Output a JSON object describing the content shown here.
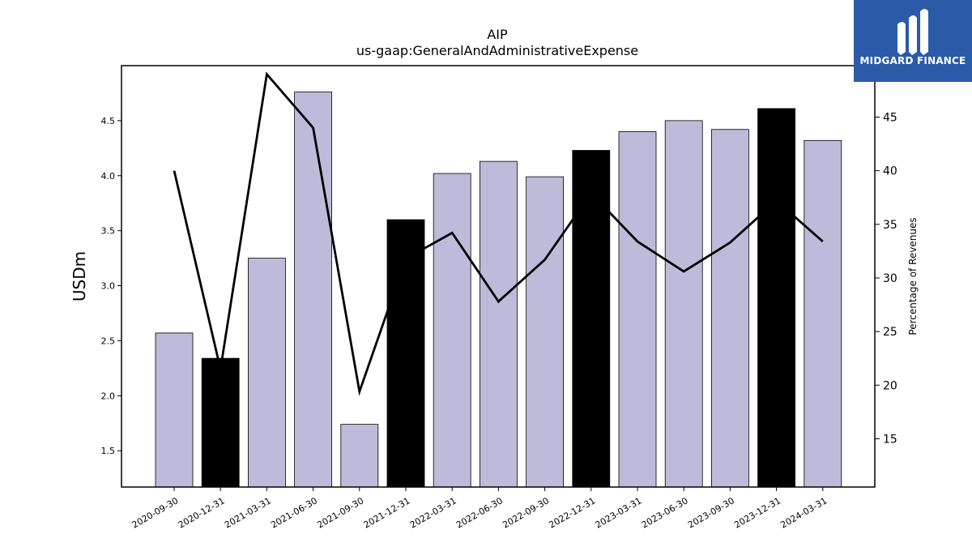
{
  "chart_data": {
    "type": "bar+line",
    "title": "AIP",
    "subtitle": "us-gaap:GeneralAndAdministrativeExpense",
    "ylabel": "USDm",
    "y2label": "Percentage of Revenues",
    "categories": [
      "2020-09-30",
      "2020-12-31",
      "2021-03-31",
      "2021-06-30",
      "2021-09-30",
      "2021-12-31",
      "2022-03-31",
      "2022-06-30",
      "2022-09-30",
      "2022-12-31",
      "2023-03-31",
      "2023-06-30",
      "2023-09-30",
      "2023-12-31",
      "2024-03-31"
    ],
    "bar_values": [
      2.57,
      2.34,
      3.25,
      4.76,
      1.74,
      3.6,
      4.02,
      4.13,
      3.99,
      4.23,
      4.4,
      4.5,
      4.42,
      4.61,
      4.32
    ],
    "bar_highlight": [
      false,
      true,
      false,
      false,
      false,
      true,
      false,
      false,
      false,
      true,
      false,
      false,
      false,
      true,
      false
    ],
    "line_values": [
      40.0,
      21.5,
      49.0,
      44.0,
      19.4,
      31.8,
      34.2,
      27.8,
      31.7,
      37.9,
      33.4,
      30.6,
      33.3,
      37.2,
      33.4
    ],
    "ylim": [
      1.17,
      5.0
    ],
    "y2lim": [
      10.5,
      49.8
    ],
    "yticks": [
      "1.5",
      "2.0",
      "2.5",
      "3.0",
      "3.5",
      "4.0",
      "4.5"
    ],
    "y2ticks": [
      "15",
      "20",
      "25",
      "30",
      "35",
      "40",
      "45"
    ],
    "colors": {
      "bar": "#bebad9",
      "bar_highlight": "#000000",
      "line": "#000000"
    },
    "grid": false,
    "legend": "none"
  },
  "logo": {
    "text": "MIDGARD FINANCE",
    "background": "#2b5aa8"
  }
}
